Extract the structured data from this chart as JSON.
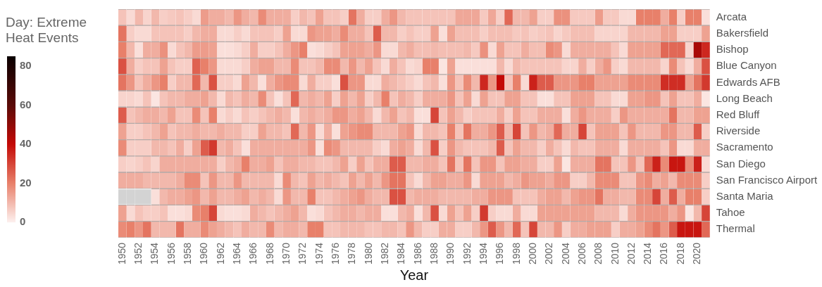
{
  "chart_data": {
    "type": "heatmap",
    "xlabel": "Year",
    "clabel": "Day: Extreme Heat Events",
    "clim": [
      0,
      85
    ],
    "cticks": [
      0,
      20,
      40,
      60,
      80
    ],
    "categories": [
      "1950",
      null,
      "1952",
      null,
      "1954",
      null,
      "1956",
      null,
      "1958",
      null,
      "1960",
      null,
      "1962",
      null,
      "1964",
      null,
      "1966",
      null,
      "1968",
      null,
      "1970",
      null,
      "1972",
      null,
      "1974",
      null,
      "1976",
      null,
      "1978",
      null,
      "1980",
      null,
      "1982",
      null,
      "1984",
      null,
      "1986",
      null,
      "1988",
      null,
      "1990",
      null,
      "1992",
      null,
      "1994",
      null,
      "1996",
      null,
      "1998",
      null,
      "2000",
      null,
      "2002",
      null,
      "2004",
      null,
      "2006",
      null,
      "2008",
      null,
      "2010",
      null,
      "2012",
      null,
      "2014",
      null,
      "2016",
      null,
      "2018",
      null,
      "2020",
      null
    ],
    "y_categories": [
      "Arcata",
      "Bakersfield",
      "Bishop",
      "Blue Canyon",
      "Edwards AFB",
      "Long Beach",
      "Red Bluff",
      "Riverside",
      "Sacramento",
      "San Diego",
      "San Francisco Airport",
      "Santa Maria",
      "Tahoe",
      "Thermal"
    ],
    "cells": [
      [
        8,
        4,
        10,
        5,
        10,
        6,
        7,
        8,
        6,
        4,
        15,
        12,
        12,
        10,
        16,
        12,
        10,
        18,
        12,
        12,
        12,
        6,
        10,
        8,
        14,
        8,
        8,
        6,
        22,
        12,
        6,
        6,
        12,
        16,
        10,
        8,
        8,
        8,
        8,
        8,
        8,
        13,
        13,
        13,
        7,
        13,
        6,
        24,
        10,
        10,
        14,
        6,
        6,
        17,
        17,
        7,
        7,
        7,
        15,
        7,
        7,
        4,
        4,
        20,
        20,
        20,
        12,
        20,
        6,
        20,
        20,
        3
      ],
      [
        22,
        6,
        4,
        4,
        8,
        8,
        8,
        8,
        6,
        10,
        12,
        12,
        4,
        4,
        6,
        4,
        8,
        8,
        8,
        6,
        14,
        4,
        4,
        16,
        14,
        14,
        12,
        18,
        12,
        12,
        8,
        26,
        10,
        10,
        6,
        8,
        6,
        6,
        14,
        3,
        14,
        9,
        9,
        9,
        6,
        9,
        9,
        9,
        7,
        8,
        6,
        7,
        8,
        5,
        7,
        9,
        9,
        9,
        5,
        5,
        5,
        5,
        10,
        10,
        10,
        10,
        14,
        14,
        6,
        6,
        6,
        14
      ],
      [
        20,
        10,
        3,
        12,
        12,
        17,
        4,
        8,
        10,
        15,
        15,
        14,
        3,
        3,
        4,
        6,
        12,
        6,
        6,
        8,
        12,
        16,
        20,
        3,
        4,
        6,
        8,
        14,
        14,
        14,
        12,
        16,
        4,
        4,
        10,
        12,
        9,
        9,
        10,
        9,
        9,
        9,
        10,
        7,
        17,
        4,
        14,
        8,
        8,
        12,
        9,
        9,
        18,
        16,
        4,
        12,
        12,
        12,
        12,
        12,
        8,
        4,
        14,
        14,
        14,
        14,
        24,
        24,
        24,
        5,
        45,
        35
      ],
      [
        28,
        12,
        6,
        8,
        8,
        14,
        8,
        6,
        6,
        25,
        20,
        16,
        4,
        4,
        4,
        6,
        12,
        14,
        14,
        10,
        10,
        18,
        8,
        8,
        10,
        18,
        18,
        10,
        16,
        10,
        14,
        8,
        4,
        12,
        8,
        4,
        5,
        20,
        20,
        2,
        14,
        3,
        3,
        3,
        3,
        3,
        10,
        4,
        10,
        8,
        8,
        8,
        8,
        8,
        5,
        5,
        12,
        6,
        12,
        16,
        6,
        4,
        10,
        10,
        10,
        10,
        5,
        18,
        8,
        4,
        12,
        28
      ],
      [
        22,
        16,
        8,
        12,
        16,
        20,
        6,
        10,
        10,
        24,
        10,
        28,
        6,
        6,
        4,
        14,
        10,
        3,
        12,
        16,
        18,
        18,
        4,
        12,
        6,
        6,
        3,
        28,
        16,
        16,
        4,
        4,
        12,
        10,
        8,
        6,
        4,
        8,
        10,
        3,
        16,
        8,
        18,
        10,
        35,
        16,
        40,
        8,
        20,
        4,
        36,
        26,
        26,
        16,
        16,
        16,
        20,
        20,
        14,
        14,
        14,
        14,
        18,
        18,
        18,
        18,
        34,
        34,
        34,
        14,
        22,
        32
      ],
      [
        5,
        5,
        4,
        8,
        2,
        8,
        10,
        10,
        12,
        12,
        14,
        10,
        4,
        10,
        8,
        12,
        10,
        18,
        8,
        3,
        8,
        24,
        10,
        12,
        10,
        14,
        6,
        14,
        10,
        14,
        6,
        10,
        20,
        8,
        12,
        10,
        6,
        12,
        12,
        12,
        16,
        8,
        14,
        4,
        14,
        8,
        8,
        14,
        14,
        8,
        8,
        3,
        3,
        8,
        8,
        14,
        14,
        14,
        8,
        8,
        4,
        4,
        14,
        14,
        16,
        16,
        8,
        14,
        8,
        8,
        12,
        2
      ],
      [
        26,
        8,
        10,
        12,
        12,
        10,
        14,
        8,
        8,
        18,
        8,
        20,
        4,
        6,
        4,
        8,
        6,
        8,
        10,
        12,
        10,
        3,
        10,
        12,
        10,
        12,
        16,
        16,
        12,
        14,
        10,
        4,
        10,
        14,
        8,
        10,
        3,
        3,
        30,
        8,
        14,
        10,
        6,
        8,
        8,
        8,
        12,
        6,
        14,
        8,
        8,
        12,
        12,
        12,
        3,
        12,
        16,
        12,
        12,
        12,
        6,
        16,
        12,
        12,
        12,
        12,
        12,
        22,
        10,
        10,
        14,
        14
      ],
      [
        14,
        6,
        6,
        8,
        10,
        14,
        8,
        10,
        10,
        12,
        10,
        10,
        12,
        10,
        10,
        6,
        6,
        14,
        10,
        10,
        8,
        24,
        10,
        16,
        4,
        12,
        3,
        14,
        16,
        18,
        18,
        10,
        10,
        10,
        14,
        16,
        4,
        10,
        10,
        8,
        20,
        8,
        22,
        12,
        12,
        16,
        26,
        10,
        30,
        8,
        16,
        10,
        12,
        24,
        12,
        12,
        30,
        8,
        14,
        14,
        14,
        8,
        16,
        10,
        10,
        10,
        16,
        16,
        10,
        10,
        26,
        6
      ],
      [
        18,
        6,
        6,
        6,
        10,
        10,
        8,
        12,
        6,
        14,
        26,
        32,
        10,
        12,
        8,
        3,
        12,
        12,
        12,
        12,
        12,
        12,
        12,
        16,
        3,
        18,
        16,
        10,
        10,
        10,
        10,
        6,
        4,
        12,
        14,
        12,
        4,
        10,
        28,
        6,
        16,
        10,
        8,
        8,
        8,
        10,
        26,
        8,
        14,
        10,
        10,
        6,
        12,
        8,
        4,
        10,
        8,
        8,
        12,
        12,
        12,
        4,
        12,
        12,
        12,
        12,
        8,
        16,
        4,
        4,
        12,
        12
      ],
      [
        6,
        5,
        6,
        8,
        5,
        12,
        12,
        12,
        12,
        12,
        12,
        12,
        6,
        10,
        12,
        20,
        12,
        12,
        14,
        8,
        12,
        12,
        10,
        10,
        8,
        8,
        10,
        14,
        6,
        14,
        8,
        12,
        12,
        26,
        26,
        10,
        10,
        12,
        12,
        8,
        22,
        8,
        22,
        8,
        16,
        16,
        8,
        14,
        14,
        12,
        12,
        6,
        6,
        14,
        2,
        12,
        12,
        12,
        22,
        22,
        8,
        8,
        16,
        8,
        24,
        36,
        18,
        38,
        38,
        18,
        36,
        4
      ],
      [
        12,
        12,
        12,
        10,
        10,
        10,
        10,
        12,
        18,
        18,
        8,
        16,
        10,
        10,
        16,
        10,
        10,
        10,
        10,
        4,
        18,
        10,
        8,
        14,
        10,
        12,
        10,
        8,
        14,
        10,
        14,
        10,
        16,
        22,
        22,
        8,
        4,
        10,
        14,
        14,
        12,
        12,
        16,
        4,
        14,
        14,
        14,
        10,
        12,
        16,
        14,
        14,
        12,
        16,
        16,
        6,
        6,
        10,
        18,
        18,
        18,
        8,
        8,
        16,
        18,
        12,
        14,
        10,
        18,
        18,
        18,
        6
      ],
      [
        null,
        null,
        null,
        null,
        3,
        10,
        12,
        12,
        14,
        16,
        10,
        14,
        10,
        10,
        12,
        14,
        10,
        12,
        10,
        4,
        16,
        10,
        10,
        20,
        8,
        8,
        10,
        12,
        14,
        16,
        12,
        10,
        10,
        28,
        28,
        10,
        12,
        12,
        12,
        10,
        10,
        10,
        10,
        12,
        12,
        16,
        16,
        16,
        8,
        8,
        8,
        12,
        14,
        14,
        10,
        14,
        16,
        16,
        22,
        12,
        12,
        10,
        10,
        18,
        18,
        30,
        12,
        26,
        12,
        20,
        20,
        6
      ],
      [
        14,
        4,
        8,
        6,
        6,
        8,
        3,
        3,
        4,
        18,
        20,
        30,
        4,
        3,
        3,
        4,
        12,
        10,
        8,
        10,
        12,
        14,
        10,
        3,
        4,
        8,
        10,
        12,
        12,
        10,
        12,
        12,
        3,
        3,
        10,
        12,
        3,
        10,
        28,
        4,
        14,
        8,
        14,
        6,
        32,
        6,
        4,
        4,
        12,
        4,
        4,
        14,
        14,
        14,
        14,
        14,
        14,
        14,
        10,
        10,
        10,
        4,
        12,
        16,
        16,
        16,
        16,
        12,
        16,
        2,
        10,
        30
      ],
      [
        18,
        20,
        16,
        22,
        10,
        10,
        10,
        22,
        12,
        12,
        18,
        14,
        12,
        10,
        8,
        12,
        10,
        10,
        18,
        10,
        12,
        12,
        10,
        20,
        20,
        8,
        8,
        10,
        10,
        10,
        8,
        8,
        10,
        10,
        8,
        16,
        10,
        6,
        6,
        12,
        12,
        6,
        6,
        10,
        16,
        26,
        16,
        10,
        24,
        8,
        30,
        10,
        10,
        16,
        6,
        12,
        12,
        14,
        14,
        14,
        6,
        12,
        12,
        14,
        18,
        22,
        16,
        26,
        38,
        38,
        38,
        24
      ]
    ]
  }
}
